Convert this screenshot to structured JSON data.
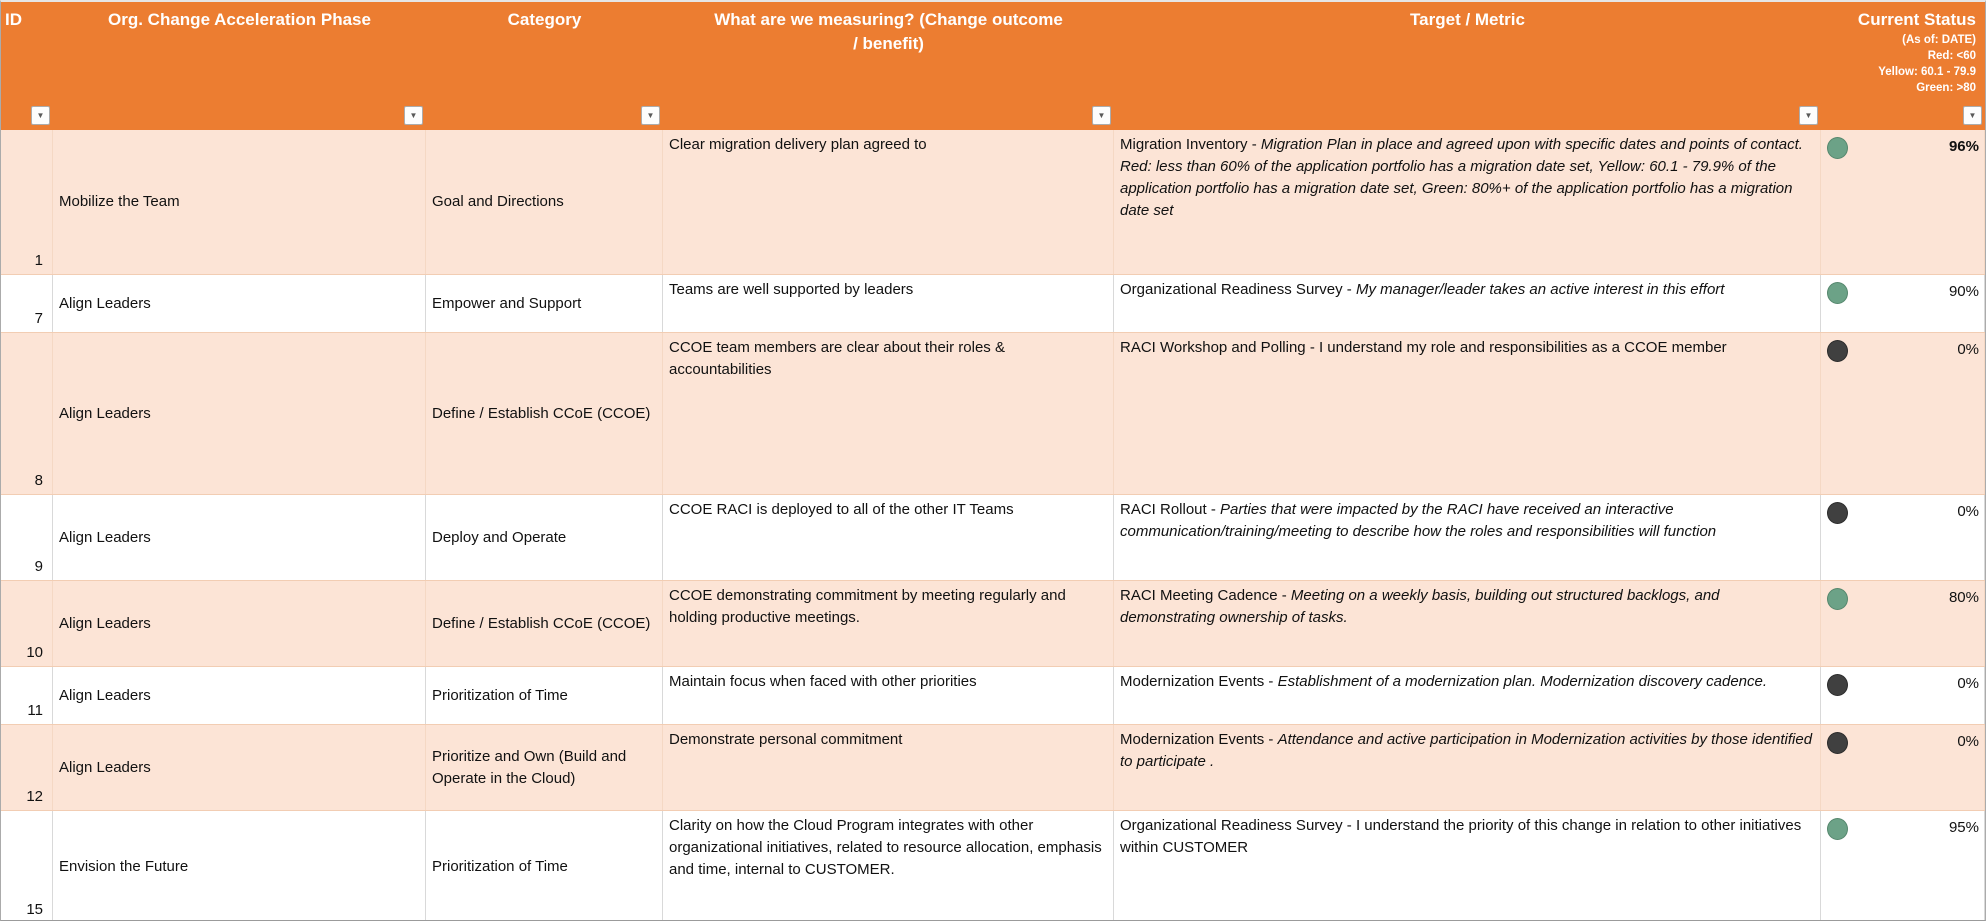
{
  "colors": {
    "header_bg": "#EC7D31",
    "header_text": "#FFFFFF",
    "row_alt_bg": "#FCE4D6",
    "row_bg": "#FFFFFF",
    "status_green": "#6CA287",
    "status_dark": "#404040"
  },
  "header": {
    "columns": [
      {
        "label": "ID"
      },
      {
        "label": "Org. Change Acceleration Phase"
      },
      {
        "label": "Category"
      },
      {
        "label": "What are we measuring? (Change outcome\n/ benefit)"
      },
      {
        "label": "Target / Metric"
      },
      {
        "label": "Current Status",
        "sublines": [
          "(As of: DATE)",
          "Red: <60",
          "Yellow: 60.1 - 79.9",
          "Green: >80"
        ]
      }
    ],
    "filter_icon": "▼"
  },
  "rows": [
    {
      "id": "1",
      "shade": "alt",
      "phase": "Mobilize the Team",
      "category": "Goal and Directions",
      "measuring": "Clear migration delivery plan agreed to",
      "target_plain": "Migration Inventory  - ",
      "target_italic": "Migration Plan in place and agreed upon with specific dates and points of contact. Red: less than 60% of the application portfolio has a migration date set, Yellow: 60.1 - 79.9% of the application portfolio has a migration date set, Green: 80%+ of the application portfolio has a migration date set",
      "status_color": "green",
      "status_value": "96%",
      "status_bold": true
    },
    {
      "id": "7",
      "shade": "white",
      "phase": "Align Leaders",
      "category": "Empower and Support",
      "measuring": "Teams are well supported by leaders",
      "target_plain": "Organizational Readiness Survey - ",
      "target_italic": "My manager/leader takes an active interest in this effort",
      "status_color": "green",
      "status_value": "90%",
      "status_bold": false
    },
    {
      "id": "8",
      "shade": "alt",
      "phase": "Align Leaders",
      "category": "Define / Establish CCoE (CCOE)",
      "measuring": "CCOE team members are clear about their roles & accountabilities",
      "target_plain": "RACI Workshop and Polling - I understand my role and responsibilities as a CCOE member",
      "target_italic": "",
      "status_color": "dark",
      "status_value": "0%",
      "status_bold": false
    },
    {
      "id": "9",
      "shade": "white",
      "phase": "Align Leaders",
      "category": "Deploy and Operate",
      "measuring": "CCOE RACI is deployed to all of the other IT Teams",
      "target_plain": "RACI Rollout - ",
      "target_italic": "Parties that were impacted by the RACI have received an interactive communication/training/meeting to describe how the roles and responsibilities will function",
      "status_color": "dark",
      "status_value": "0%",
      "status_bold": false
    },
    {
      "id": "10",
      "shade": "alt",
      "phase": "Align Leaders",
      "category": "Define / Establish CCoE (CCOE)",
      "measuring": "CCOE demonstrating commitment by meeting regularly and holding productive meetings.",
      "target_plain": "RACI Meeting Cadence - ",
      "target_italic": "Meeting on a weekly basis, building out structured backlogs, and demonstrating ownership of tasks.",
      "status_color": "green",
      "status_value": "80%",
      "status_bold": false
    },
    {
      "id": "11",
      "shade": "white",
      "phase": "Align Leaders",
      "category": "Prioritization of Time",
      "measuring": "Maintain focus when faced with other priorities",
      "target_plain": "Modernization Events - ",
      "target_italic": " Establishment of a modernization plan. Modernization discovery cadence.",
      "status_color": "dark",
      "status_value": "0%",
      "status_bold": false
    },
    {
      "id": "12",
      "shade": "alt",
      "phase": "Align Leaders",
      "category": "Prioritize and Own (Build and Operate in the Cloud)",
      "measuring": "Demonstrate personal commitment",
      "target_plain": "Modernization Events - ",
      "target_italic": " Attendance and active participation in Modernization activities by those identified to participate .",
      "status_color": "dark",
      "status_value": "0%",
      "status_bold": false
    },
    {
      "id": "15",
      "shade": "white",
      "phase": "Envision the Future",
      "category": "Prioritization of Time",
      "measuring": "Clarity on how the Cloud Program integrates with other organizational initiatives, related to resource allocation, emphasis and time, internal to CUSTOMER.",
      "target_plain": "Organizational Readiness Survey - I understand the priority of this change in relation to other initiatives within CUSTOMER",
      "target_italic": "",
      "status_color": "green",
      "status_value": "95%",
      "status_bold": false
    }
  ]
}
